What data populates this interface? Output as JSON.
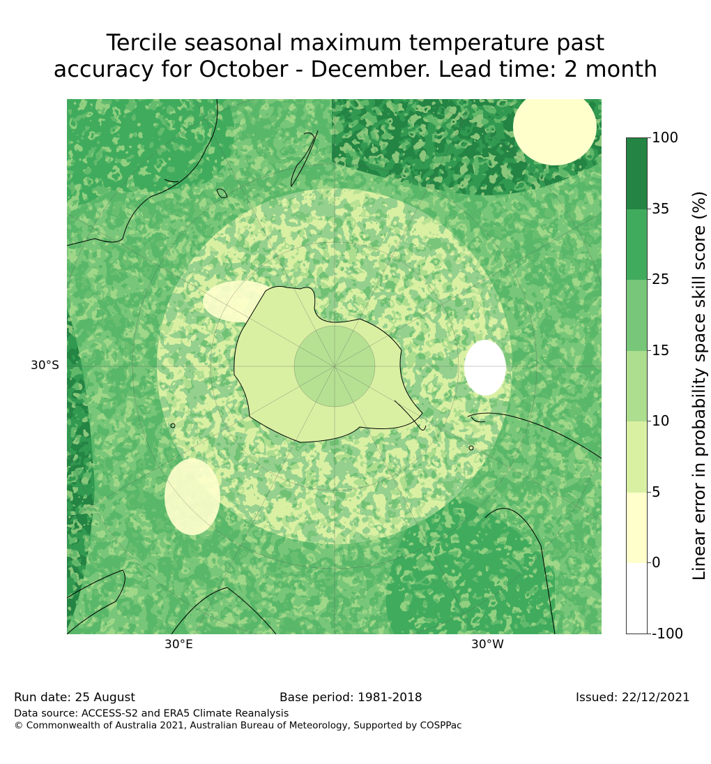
{
  "title": {
    "line1": "Tercile seasonal maximum temperature past",
    "line2": "accuracy for October - December. Lead time: 2 month"
  },
  "map": {
    "lat_label": "30°S",
    "lon_labels": [
      "30°E",
      "30°W"
    ]
  },
  "colorbar": {
    "label": "Linear error in probability space skill score (%)",
    "ticks": [
      "100",
      "35",
      "25",
      "15",
      "10",
      "5",
      "0",
      "-100"
    ],
    "colors": [
      "#238443",
      "#41ab5d",
      "#78c679",
      "#addd8e",
      "#d9f0a3",
      "#ffffcc",
      "#ffffff"
    ]
  },
  "footer": {
    "run_date": "Run date: 25 August",
    "base_period": "Base period: 1981-2018",
    "issued": "Issued: 22/12/2021",
    "data_source": "Data source: ACCESS-S2 and ERA5 Climate Reanalysis",
    "copyright": "© Commonwealth of Australia 2021, Australian Bureau of Meteorology, Supported by COSPPac"
  }
}
